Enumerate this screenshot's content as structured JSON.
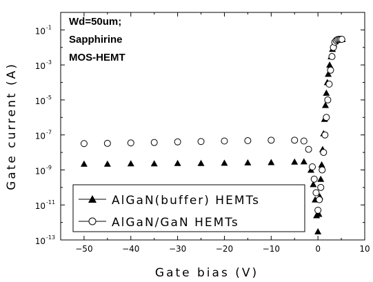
{
  "chart_data": {
    "type": "scatter",
    "annotation": [
      "Wd=50um;",
      "Sapphirine",
      "MOS-HEMT"
    ],
    "xlabel": "Gate bias (V)",
    "ylabel": "Gate current (A)",
    "xlim": [
      -55,
      10
    ],
    "ylim": [
      1e-13,
      1
    ],
    "yscale": "log",
    "x_ticks": [
      "-50",
      "-40",
      "-30",
      "-20",
      "-10",
      "0",
      "10"
    ],
    "y_ticks": [
      {
        "base": "10",
        "exp": "-1"
      },
      {
        "base": "10",
        "exp": "-3"
      },
      {
        "base": "10",
        "exp": "-5"
      },
      {
        "base": "10",
        "exp": "-7"
      },
      {
        "base": "10",
        "exp": "-9"
      },
      {
        "base": "10",
        "exp": "-11"
      },
      {
        "base": "10",
        "exp": "-13"
      }
    ],
    "legend_position": "bottom-left",
    "series": [
      {
        "name": "AlGaN(buffer) HEMTs",
        "marker": "filled-triangle",
        "color": "#000000",
        "x": [
          -50,
          -45,
          -40,
          -35,
          -30,
          -25,
          -20,
          -15,
          -10,
          -5,
          -3,
          -1.5,
          -1,
          -0.6,
          -0.3,
          0,
          0.2,
          0.4,
          0.6,
          0.8,
          1.0,
          1.2,
          1.4,
          1.6,
          1.8,
          2.0,
          2.2,
          2.5,
          2.8,
          3.1,
          3.4,
          3.7,
          4.0,
          4.3,
          4.6,
          4.9,
          5.2
        ],
        "y": [
          2.2e-09,
          2.2e-09,
          2.3e-09,
          2.3e-09,
          2.4e-09,
          2.4e-09,
          2.5e-09,
          2.6e-09,
          2.7e-09,
          2.9e-09,
          3e-09,
          1e-09,
          1.5e-10,
          2e-11,
          2.5e-12,
          3e-13,
          3e-12,
          3e-11,
          3e-10,
          2e-09,
          1.5e-08,
          1.2e-07,
          8e-07,
          5e-06,
          2.5e-05,
          0.0001,
          0.0003,
          0.001,
          0.003,
          0.008,
          0.015,
          0.022,
          0.026,
          0.028,
          0.029,
          0.029,
          0.029
        ]
      },
      {
        "name": "AlGaN/GaN HEMTs",
        "marker": "open-circle",
        "color": "#000000",
        "x": [
          -50,
          -45,
          -40,
          -35,
          -30,
          -25,
          -20,
          -15,
          -10,
          -5,
          -3,
          -2,
          -1.2,
          -0.8,
          -0.4,
          0,
          0.3,
          0.6,
          0.9,
          1.2,
          1.5,
          1.8,
          2.1,
          2.4,
          2.7,
          3.0,
          3.3,
          3.6,
          3.9,
          4.2,
          4.5,
          4.8,
          5.1
        ],
        "y": [
          3.2e-08,
          3.3e-08,
          3.5e-08,
          3.7e-08,
          4e-08,
          4.2e-08,
          4.5e-08,
          4.7e-08,
          5e-08,
          5e-08,
          4.5e-08,
          1.5e-08,
          1.5e-09,
          3e-10,
          5e-11,
          5e-12,
          2e-11,
          1e-10,
          1e-09,
          1e-08,
          1e-07,
          1e-06,
          1e-05,
          8e-05,
          0.0005,
          0.003,
          0.01,
          0.02,
          0.025,
          0.028,
          0.029,
          0.029,
          0.029
        ]
      }
    ]
  }
}
